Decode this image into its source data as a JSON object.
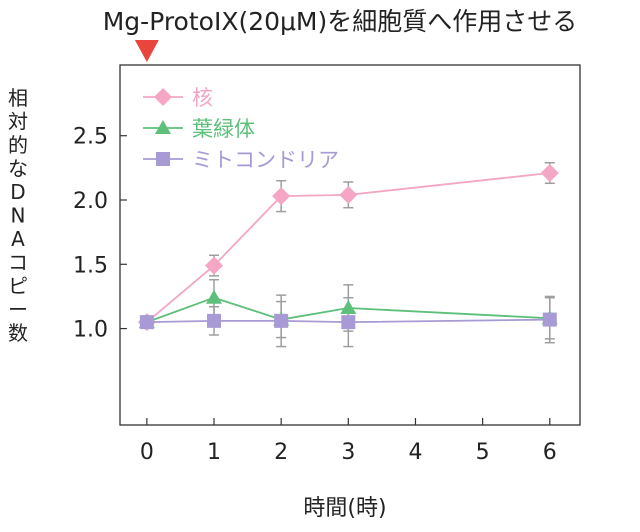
{
  "chart_data": {
    "type": "line",
    "title": "Mg-ProtoIX(20μM)を細胞質へ作用させる",
    "xlabel": "時間(時)",
    "ylabel": "相対的なDNAコピー数",
    "x": [
      0,
      1,
      2,
      3,
      6
    ],
    "x_ticks": [
      0,
      1,
      2,
      3,
      4,
      5,
      6
    ],
    "x_tick_labels": [
      "0",
      "1",
      "2",
      "3",
      "4",
      "5",
      "6"
    ],
    "y_ticks": [
      1.0,
      1.5,
      2.0,
      2.5
    ],
    "y_tick_labels": [
      "1.0",
      "1.5",
      "2.0",
      "2.5"
    ],
    "xlim": [
      -0.4,
      6.45
    ],
    "ylim": [
      0.25,
      3.05
    ],
    "grid": false,
    "legend_position": "top-left",
    "treatment_marker": {
      "x": 0,
      "color": "#e8453c"
    },
    "series": [
      {
        "name": "核",
        "color": "#f4a6c4",
        "marker": "diamond",
        "values": [
          1.05,
          1.49,
          2.03,
          2.04,
          2.21
        ],
        "errors": [
          0.03,
          0.08,
          0.12,
          0.1,
          0.08
        ]
      },
      {
        "name": "葉緑体",
        "color": "#5cbf7a",
        "marker": "triangle",
        "values": [
          1.05,
          1.24,
          1.07,
          1.16,
          1.08
        ],
        "errors": [
          0.03,
          0.14,
          0.14,
          0.18,
          0.16
        ]
      },
      {
        "name": "ミトコンドリア",
        "color": "#a89ad4",
        "marker": "square",
        "values": [
          1.05,
          1.06,
          1.06,
          1.05,
          1.07
        ],
        "errors": [
          0.03,
          0.11,
          0.2,
          0.19,
          0.18
        ]
      }
    ],
    "error_bar_color": "#9e9e9e",
    "axis_color": "#333333"
  }
}
